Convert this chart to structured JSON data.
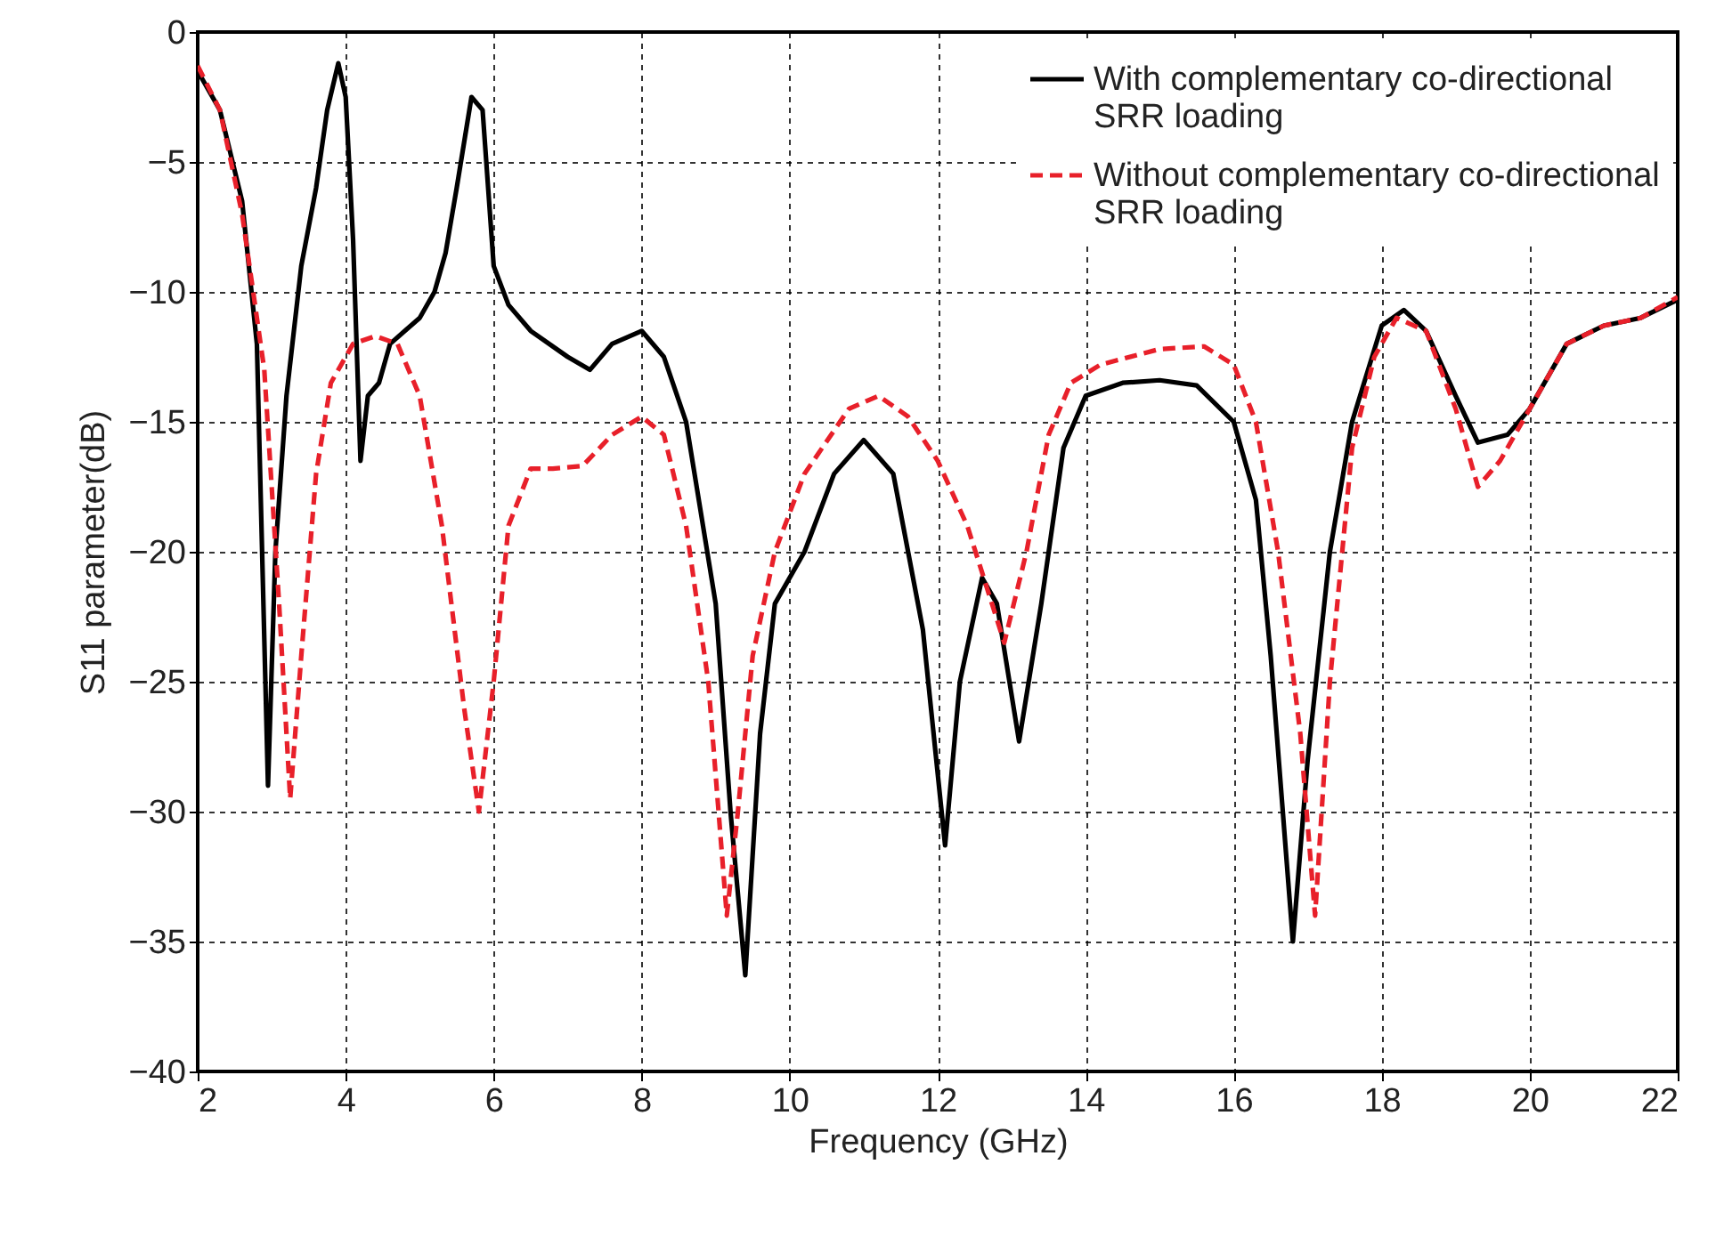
{
  "chart_data": {
    "type": "line",
    "xlabel": "Frequency (GHz)",
    "ylabel": "S11 parameter(dB)",
    "xlim": [
      2,
      22
    ],
    "ylim": [
      -40,
      0
    ],
    "xticks": [
      2,
      4,
      6,
      8,
      10,
      12,
      14,
      16,
      18,
      20,
      22
    ],
    "yticks": [
      -40,
      -35,
      -30,
      -25,
      -20,
      -15,
      -10,
      -5,
      0
    ],
    "grid": true,
    "legend": "top right",
    "marker": "none",
    "series": [
      {
        "name": "With complementary co-directional SRR loading",
        "color": "#000000",
        "line_style": "solid",
        "x": [
          2.0,
          2.3,
          2.6,
          2.8,
          2.95,
          3.05,
          3.2,
          3.4,
          3.6,
          3.75,
          3.9,
          4.0,
          4.1,
          4.2,
          4.3,
          4.45,
          4.6,
          4.8,
          5.0,
          5.2,
          5.35,
          5.5,
          5.7,
          5.85,
          6.0,
          6.2,
          6.5,
          7.0,
          7.3,
          7.6,
          8.0,
          8.3,
          8.6,
          9.0,
          9.2,
          9.4,
          9.6,
          9.8,
          10.2,
          10.6,
          11.0,
          11.4,
          11.8,
          12.1,
          12.3,
          12.6,
          12.8,
          13.1,
          13.4,
          13.7,
          14.0,
          14.5,
          15.0,
          15.5,
          16.0,
          16.3,
          16.5,
          16.8,
          17.0,
          17.3,
          17.6,
          18.0,
          18.3,
          18.6,
          19.0,
          19.3,
          19.7,
          20.0,
          20.5,
          21.0,
          21.5,
          22.0
        ],
        "values": [
          -1.5,
          -3,
          -6.5,
          -12,
          -29,
          -20,
          -14,
          -9,
          -6,
          -3,
          -1.2,
          -2.5,
          -8,
          -16.5,
          -14,
          -13.5,
          -12,
          -11.5,
          -11,
          -10,
          -8.5,
          -6,
          -2.5,
          -3,
          -9,
          -10.5,
          -11.5,
          -12.5,
          -13,
          -12,
          -11.5,
          -12.5,
          -15,
          -22,
          -30,
          -36.3,
          -27,
          -22,
          -20,
          -17,
          -15.7,
          -17,
          -23,
          -31.3,
          -25,
          -21,
          -22,
          -27.3,
          -22,
          -16,
          -14,
          -13.5,
          -13.4,
          -13.6,
          -15,
          -18,
          -24,
          -35,
          -28,
          -20,
          -15,
          -11.3,
          -10.7,
          -11.5,
          -14,
          -15.8,
          -15.5,
          -14.5,
          -12,
          -11.3,
          -11,
          -10.3
        ]
      },
      {
        "name": "Without complementary co-directional SRR loading",
        "color": "#e8202a",
        "line_style": "dashed",
        "x": [
          2.0,
          2.3,
          2.6,
          2.9,
          3.1,
          3.25,
          3.4,
          3.6,
          3.8,
          4.1,
          4.4,
          4.7,
          5.0,
          5.3,
          5.6,
          5.8,
          6.0,
          6.2,
          6.5,
          6.8,
          7.2,
          7.6,
          8.0,
          8.3,
          8.6,
          8.9,
          9.15,
          9.3,
          9.5,
          9.8,
          10.2,
          10.8,
          11.2,
          11.6,
          12.0,
          12.4,
          12.9,
          13.2,
          13.5,
          13.8,
          14.2,
          15.0,
          15.6,
          16.0,
          16.3,
          16.6,
          16.9,
          17.1,
          17.3,
          17.6,
          17.9,
          18.2,
          18.6,
          19.0,
          19.3,
          19.6,
          20.0,
          20.5,
          21.0,
          21.5,
          22.0
        ],
        "values": [
          -1.3,
          -3,
          -7,
          -13,
          -22,
          -29.5,
          -24,
          -17,
          -13.5,
          -12,
          -11.7,
          -12,
          -14,
          -19,
          -26,
          -30,
          -25,
          -19,
          -16.8,
          -16.8,
          -16.7,
          -15.5,
          -14.8,
          -15.5,
          -19,
          -25,
          -34,
          -30,
          -24,
          -20,
          -17,
          -14.5,
          -14,
          -14.8,
          -16.5,
          -19,
          -23.5,
          -20,
          -15.5,
          -13.5,
          -12.8,
          -12.2,
          -12.1,
          -12.8,
          -15,
          -20,
          -27,
          -34,
          -25,
          -16,
          -12.5,
          -11,
          -11.5,
          -14.5,
          -17.5,
          -16.5,
          -14.5,
          -12,
          -11.3,
          -11,
          -10.2
        ]
      }
    ]
  }
}
